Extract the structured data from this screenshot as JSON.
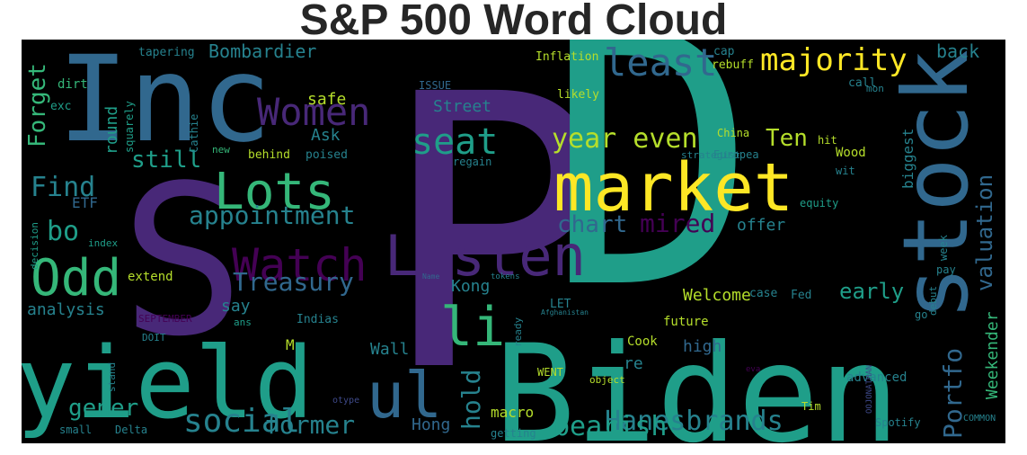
{
  "title": "S&P 500 Word Cloud",
  "palette": {
    "background": "#000000",
    "dark_purple": "#440154",
    "purple": "#482878",
    "indigo": "#3e4989",
    "blue": "#31688e",
    "teal_blue": "#26828e",
    "teal": "#1f9e89",
    "green": "#35b779",
    "light_green": "#6ece58",
    "lime": "#b5de2b",
    "yellow": "#fde725"
  },
  "words": [
    {
      "text": "P"
    },
    {
      "text": "D"
    },
    {
      "text": "Biden"
    },
    {
      "text": "Inc"
    },
    {
      "text": "S"
    },
    {
      "text": "yield"
    },
    {
      "text": "market"
    },
    {
      "text": "stock"
    },
    {
      "text": "Listen"
    },
    {
      "text": "Lots"
    },
    {
      "text": "Watch"
    },
    {
      "text": "ul"
    },
    {
      "text": "Women"
    },
    {
      "text": "Odd"
    },
    {
      "text": "li"
    },
    {
      "text": "seat"
    },
    {
      "text": "least"
    },
    {
      "text": "majority"
    },
    {
      "text": "Find"
    },
    {
      "text": "year even"
    },
    {
      "text": "appointment"
    },
    {
      "text": "social"
    },
    {
      "text": "bo"
    },
    {
      "text": "Treasury"
    },
    {
      "text": "Hanesbrands"
    },
    {
      "text": "bearish"
    },
    {
      "text": "Forget"
    },
    {
      "text": "Portfo"
    },
    {
      "text": "mired"
    },
    {
      "text": "former"
    },
    {
      "text": "hold"
    },
    {
      "text": "still"
    },
    {
      "text": "gener"
    },
    {
      "text": "chart"
    },
    {
      "text": "Ten"
    },
    {
      "text": "valuation"
    },
    {
      "text": "early"
    },
    {
      "text": "Bombardier"
    },
    {
      "text": "back"
    },
    {
      "text": "Weekender"
    },
    {
      "text": "safe"
    },
    {
      "text": "analysis"
    },
    {
      "text": "round"
    },
    {
      "text": "Street"
    },
    {
      "text": "Ask"
    },
    {
      "text": "high"
    },
    {
      "text": "Welcome"
    },
    {
      "text": "Wall"
    },
    {
      "text": "Hong"
    },
    {
      "text": "macro"
    },
    {
      "text": "re"
    },
    {
      "text": "offer"
    },
    {
      "text": "Kong"
    },
    {
      "text": "biggest"
    },
    {
      "text": "say"
    },
    {
      "text": "ETF"
    },
    {
      "text": "M"
    },
    {
      "text": "future"
    },
    {
      "text": "Cook"
    },
    {
      "text": "Wood"
    },
    {
      "text": "extend"
    },
    {
      "text": "dirt"
    },
    {
      "text": "tapering"
    },
    {
      "text": "Inflation"
    },
    {
      "text": "cap"
    },
    {
      "text": "rebuff"
    },
    {
      "text": "call"
    },
    {
      "text": "ISSUE"
    },
    {
      "text": "likely"
    },
    {
      "text": "exc"
    },
    {
      "text": "squarely"
    },
    {
      "text": "Cathie"
    },
    {
      "text": "new"
    },
    {
      "text": "behind"
    },
    {
      "text": "poised"
    },
    {
      "text": "regain"
    },
    {
      "text": "China"
    },
    {
      "text": "Europea"
    },
    {
      "text": "strategist"
    },
    {
      "text": "hit"
    },
    {
      "text": "wit"
    },
    {
      "text": "equity"
    },
    {
      "text": "index"
    },
    {
      "text": "decision"
    },
    {
      "text": "case"
    },
    {
      "text": "Fed"
    },
    {
      "text": "debut"
    },
    {
      "text": "pay"
    },
    {
      "text": "week"
    },
    {
      "text": "tokens"
    },
    {
      "text": "Name"
    },
    {
      "text": "SEPTEMBER"
    },
    {
      "text": "ans"
    },
    {
      "text": "Indias"
    },
    {
      "text": "LET"
    },
    {
      "text": "Afghanistan"
    },
    {
      "text": "ready"
    },
    {
      "text": "go"
    },
    {
      "text": "DOIT"
    },
    {
      "text": "stand"
    },
    {
      "text": "WENT"
    },
    {
      "text": "object"
    },
    {
      "text": "advanced"
    },
    {
      "text": "eva"
    },
    {
      "text": "OOJONATHAN"
    },
    {
      "text": "Tim"
    },
    {
      "text": "Delta"
    },
    {
      "text": "small"
    },
    {
      "text": "getting"
    },
    {
      "text": "Spotify"
    },
    {
      "text": "COMMON"
    },
    {
      "text": "otype"
    },
    {
      "text": "mon"
    }
  ]
}
